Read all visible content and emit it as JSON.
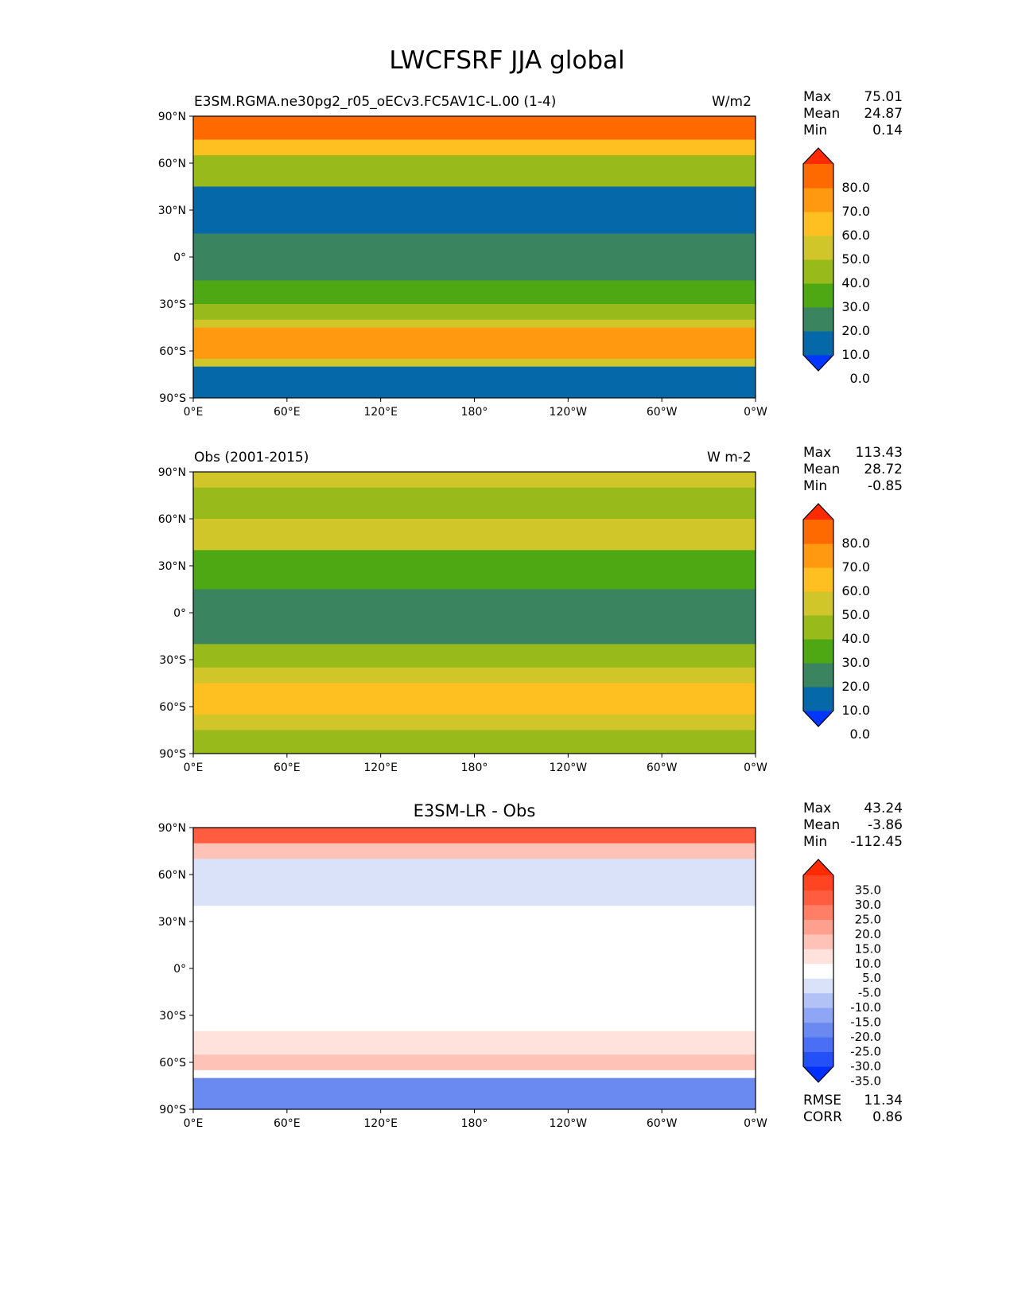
{
  "title": "LWCFSRF JJA global",
  "chart_data": [
    {
      "type": "heatmap",
      "title_left": "E3SM.RGMA.ne30pg2_r05_oECv3.FC5AV1C-L.00 (1-4)",
      "title_right": "W/m2",
      "stats": {
        "Max": "75.01",
        "Mean": "24.87",
        "Min": "0.14"
      },
      "lat_ticks": [
        "90°N",
        "60°N",
        "30°N",
        "0°",
        "30°S",
        "60°S",
        "90°S"
      ],
      "lon_ticks": [
        "0°E",
        "60°E",
        "120°E",
        "180°",
        "120°W",
        "60°W",
        "0°W"
      ],
      "levels": [
        0,
        10,
        20,
        30,
        40,
        50,
        60,
        70,
        80
      ],
      "level_labels": [
        "80.0",
        "70.0",
        "60.0",
        "50.0",
        "40.0",
        "30.0",
        "20.0",
        "10.0",
        "0.0"
      ],
      "colors": [
        "#0036ff",
        "#0568a8",
        "#3a8560",
        "#4ea814",
        "#98ba1a",
        "#d0c62a",
        "#fdc020",
        "#ff9a10",
        "#ff6a00",
        "#ff2a00"
      ],
      "zonal_bands": [
        [
          90,
          75,
          70
        ],
        [
          75,
          65,
          55
        ],
        [
          65,
          45,
          35
        ],
        [
          45,
          15,
          5
        ],
        [
          15,
          -15,
          15
        ],
        [
          -15,
          -30,
          25
        ],
        [
          -30,
          -40,
          35
        ],
        [
          -40,
          -45,
          45
        ],
        [
          -45,
          -65,
          65
        ],
        [
          -65,
          -70,
          45
        ],
        [
          -70,
          -90,
          5
        ]
      ]
    },
    {
      "type": "heatmap",
      "title_left": "Obs (2001-2015)",
      "title_right": "W m-2",
      "stats": {
        "Max": "113.43",
        "Mean": "28.72",
        "Min": "-0.85"
      },
      "lat_ticks": [
        "90°N",
        "60°N",
        "30°N",
        "0°",
        "30°S",
        "60°S",
        "90°S"
      ],
      "lon_ticks": [
        "0°E",
        "60°E",
        "120°E",
        "180°",
        "120°W",
        "60°W",
        "0°W"
      ],
      "levels": [
        0,
        10,
        20,
        30,
        40,
        50,
        60,
        70,
        80
      ],
      "level_labels": [
        "80.0",
        "70.0",
        "60.0",
        "50.0",
        "40.0",
        "30.0",
        "20.0",
        "10.0",
        "0.0"
      ],
      "colors": [
        "#0036ff",
        "#0568a8",
        "#3a8560",
        "#4ea814",
        "#98ba1a",
        "#d0c62a",
        "#fdc020",
        "#ff9a10",
        "#ff6a00",
        "#ff2a00"
      ],
      "zonal_bands": [
        [
          90,
          80,
          45
        ],
        [
          80,
          60,
          35
        ],
        [
          60,
          40,
          45
        ],
        [
          40,
          15,
          25
        ],
        [
          15,
          -20,
          15
        ],
        [
          -20,
          -35,
          35
        ],
        [
          -35,
          -45,
          45
        ],
        [
          -45,
          -65,
          55
        ],
        [
          -65,
          -75,
          45
        ],
        [
          -75,
          -90,
          35
        ]
      ]
    },
    {
      "type": "heatmap",
      "title_center": "E3SM-LR - Obs",
      "stats": {
        "Max": "43.24",
        "Mean": "-3.86",
        "Min": "-112.45"
      },
      "extra_stats": {
        "RMSE": "11.34",
        "CORR": "0.86"
      },
      "lat_ticks": [
        "90°N",
        "60°N",
        "30°N",
        "0°",
        "30°S",
        "60°S",
        "90°S"
      ],
      "lon_ticks": [
        "0°E",
        "60°E",
        "120°E",
        "180°",
        "120°W",
        "60°W",
        "0°W"
      ],
      "levels": [
        -35,
        -30,
        -25,
        -20,
        -15,
        -10,
        -5,
        5,
        10,
        15,
        20,
        25,
        30,
        35
      ],
      "level_labels": [
        "35.0",
        "30.0",
        "25.0",
        "20.0",
        "15.0",
        "10.0",
        "5.0",
        "-5.0",
        "-10.0",
        "-15.0",
        "-20.0",
        "-25.0",
        "-30.0",
        "-35.0"
      ],
      "colors": [
        "#0030ff",
        "#2450f8",
        "#4a6ef4",
        "#6a8af2",
        "#8ea6f4",
        "#b2c2f6",
        "#dae2fa",
        "#ffffff",
        "#ffe2dc",
        "#ffc2b6",
        "#ffa08e",
        "#ff7e66",
        "#ff5c40",
        "#ff4422",
        "#ff2a00"
      ],
      "zonal_bands": [
        [
          90,
          80,
          25
        ],
        [
          80,
          70,
          12
        ],
        [
          70,
          40,
          -7
        ],
        [
          40,
          -40,
          0
        ],
        [
          -40,
          -55,
          7
        ],
        [
          -55,
          -65,
          12
        ],
        [
          -65,
          -70,
          0
        ],
        [
          -70,
          -90,
          -25
        ]
      ]
    }
  ]
}
